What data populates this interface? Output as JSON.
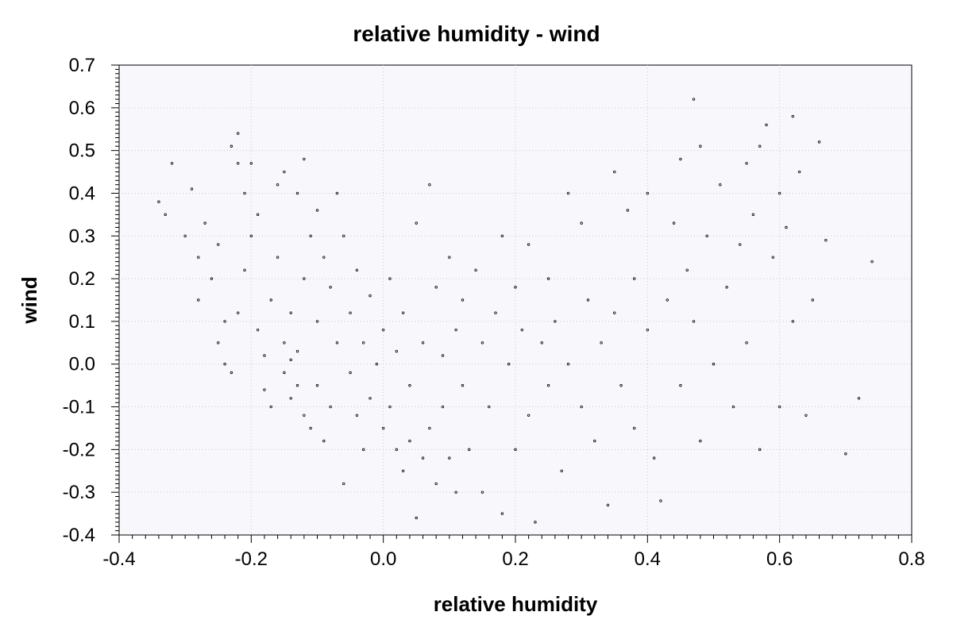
{
  "chart_data": {
    "type": "scatter",
    "title": "relative humidity - wind",
    "xlabel": "relative humidity",
    "ylabel": "wind",
    "xlim": [
      -0.4,
      0.8
    ],
    "ylim": [
      -0.4,
      0.7
    ],
    "xticks": [
      -0.4,
      -0.2,
      0.0,
      0.2,
      0.4,
      0.6,
      0.8
    ],
    "xtick_labels": [
      "-0.4",
      "-0.2",
      "0.0",
      "0.2",
      "0.4",
      "0.6",
      "0.8"
    ],
    "yticks": [
      -0.4,
      -0.3,
      -0.2,
      -0.1,
      0.0,
      0.1,
      0.2,
      0.3,
      0.4,
      0.5,
      0.6,
      0.7
    ],
    "ytick_labels": [
      "-0.4",
      "-0.3",
      "-0.2",
      "-0.1",
      "0.0",
      "0.1",
      "0.2",
      "0.3",
      "0.4",
      "0.5",
      "0.6",
      "0.7"
    ],
    "grid": true,
    "marker_color": "#000000",
    "plot_background": "#f7f7fc",
    "points": [
      [
        -0.34,
        0.38
      ],
      [
        -0.33,
        0.35
      ],
      [
        -0.32,
        0.47
      ],
      [
        -0.3,
        0.3
      ],
      [
        -0.29,
        0.41
      ],
      [
        -0.28,
        0.25
      ],
      [
        -0.28,
        0.15
      ],
      [
        -0.27,
        0.33
      ],
      [
        -0.26,
        0.2
      ],
      [
        -0.25,
        0.28
      ],
      [
        -0.24,
        0.1
      ],
      [
        -0.23,
        0.51
      ],
      [
        -0.22,
        0.54
      ],
      [
        -0.22,
        0.47
      ],
      [
        -0.21,
        0.4
      ],
      [
        -0.2,
        0.47
      ],
      [
        -0.25,
        0.05
      ],
      [
        -0.24,
        0.0
      ],
      [
        -0.23,
        -0.02
      ],
      [
        -0.22,
        0.12
      ],
      [
        -0.21,
        0.22
      ],
      [
        -0.2,
        0.3
      ],
      [
        -0.19,
        0.35
      ],
      [
        -0.19,
        0.08
      ],
      [
        -0.18,
        0.02
      ],
      [
        -0.18,
        -0.06
      ],
      [
        -0.17,
        -0.1
      ],
      [
        -0.17,
        0.15
      ],
      [
        -0.16,
        0.25
      ],
      [
        -0.16,
        0.42
      ],
      [
        -0.15,
        0.45
      ],
      [
        -0.15,
        0.05
      ],
      [
        -0.15,
        -0.02
      ],
      [
        -0.14,
        -0.08
      ],
      [
        -0.14,
        0.01
      ],
      [
        -0.14,
        0.12
      ],
      [
        -0.13,
        0.03
      ],
      [
        -0.13,
        -0.05
      ],
      [
        -0.13,
        0.4
      ],
      [
        -0.12,
        0.48
      ],
      [
        -0.12,
        0.2
      ],
      [
        -0.12,
        -0.12
      ],
      [
        -0.11,
        0.3
      ],
      [
        -0.11,
        -0.15
      ],
      [
        -0.1,
        0.36
      ],
      [
        -0.1,
        0.1
      ],
      [
        -0.1,
        -0.05
      ],
      [
        -0.09,
        0.25
      ],
      [
        -0.09,
        -0.18
      ],
      [
        -0.08,
        0.18
      ],
      [
        -0.08,
        -0.1
      ],
      [
        -0.07,
        0.4
      ],
      [
        -0.07,
        0.05
      ],
      [
        -0.06,
        -0.28
      ],
      [
        -0.06,
        0.3
      ],
      [
        -0.05,
        -0.02
      ],
      [
        -0.05,
        0.12
      ],
      [
        -0.04,
        -0.12
      ],
      [
        -0.04,
        0.22
      ],
      [
        -0.03,
        0.05
      ],
      [
        -0.03,
        -0.2
      ],
      [
        -0.02,
        -0.08
      ],
      [
        -0.02,
        0.16
      ],
      [
        -0.01,
        0.0
      ],
      [
        0.0,
        -0.15
      ],
      [
        0.0,
        0.08
      ],
      [
        0.01,
        -0.1
      ],
      [
        0.01,
        0.2
      ],
      [
        0.02,
        -0.2
      ],
      [
        0.02,
        0.03
      ],
      [
        0.03,
        -0.25
      ],
      [
        0.03,
        0.12
      ],
      [
        0.04,
        -0.18
      ],
      [
        0.04,
        -0.05
      ],
      [
        0.05,
        -0.36
      ],
      [
        0.05,
        0.33
      ],
      [
        0.06,
        -0.22
      ],
      [
        0.06,
        0.05
      ],
      [
        0.07,
        -0.15
      ],
      [
        0.07,
        0.42
      ],
      [
        0.08,
        -0.28
      ],
      [
        0.08,
        0.18
      ],
      [
        0.09,
        -0.1
      ],
      [
        0.09,
        0.02
      ],
      [
        0.1,
        -0.22
      ],
      [
        0.1,
        0.25
      ],
      [
        0.11,
        -0.3
      ],
      [
        0.11,
        0.08
      ],
      [
        0.12,
        -0.05
      ],
      [
        0.12,
        0.15
      ],
      [
        0.13,
        -0.2
      ],
      [
        0.14,
        0.22
      ],
      [
        0.15,
        -0.3
      ],
      [
        0.15,
        0.05
      ],
      [
        0.16,
        -0.1
      ],
      [
        0.17,
        0.12
      ],
      [
        0.18,
        -0.35
      ],
      [
        0.18,
        0.3
      ],
      [
        0.19,
        0.0
      ],
      [
        0.2,
        -0.2
      ],
      [
        0.2,
        0.18
      ],
      [
        0.21,
        0.08
      ],
      [
        0.22,
        -0.12
      ],
      [
        0.22,
        0.28
      ],
      [
        0.23,
        -0.37
      ],
      [
        0.24,
        0.05
      ],
      [
        0.25,
        -0.05
      ],
      [
        0.25,
        0.2
      ],
      [
        0.26,
        0.1
      ],
      [
        0.27,
        -0.25
      ],
      [
        0.28,
        0.4
      ],
      [
        0.28,
        0.0
      ],
      [
        0.3,
        -0.1
      ],
      [
        0.3,
        0.33
      ],
      [
        0.31,
        0.15
      ],
      [
        0.32,
        -0.18
      ],
      [
        0.33,
        0.05
      ],
      [
        0.34,
        -0.33
      ],
      [
        0.35,
        0.45
      ],
      [
        0.35,
        0.12
      ],
      [
        0.36,
        -0.05
      ],
      [
        0.37,
        0.36
      ],
      [
        0.38,
        0.2
      ],
      [
        0.38,
        -0.15
      ],
      [
        0.4,
        0.08
      ],
      [
        0.4,
        0.4
      ],
      [
        0.41,
        -0.22
      ],
      [
        0.42,
        -0.32
      ],
      [
        0.43,
        0.15
      ],
      [
        0.44,
        0.33
      ],
      [
        0.45,
        0.48
      ],
      [
        0.45,
        -0.05
      ],
      [
        0.46,
        0.22
      ],
      [
        0.47,
        0.62
      ],
      [
        0.47,
        0.1
      ],
      [
        0.48,
        -0.18
      ],
      [
        0.48,
        0.51
      ],
      [
        0.49,
        0.3
      ],
      [
        0.5,
        0.0
      ],
      [
        0.51,
        0.42
      ],
      [
        0.52,
        0.18
      ],
      [
        0.53,
        -0.1
      ],
      [
        0.54,
        0.28
      ],
      [
        0.55,
        0.47
      ],
      [
        0.55,
        0.05
      ],
      [
        0.56,
        0.35
      ],
      [
        0.57,
        -0.2
      ],
      [
        0.57,
        0.51
      ],
      [
        0.58,
        0.56
      ],
      [
        0.59,
        0.25
      ],
      [
        0.6,
        0.4
      ],
      [
        0.6,
        -0.1
      ],
      [
        0.61,
        0.32
      ],
      [
        0.62,
        0.58
      ],
      [
        0.62,
        0.1
      ],
      [
        0.63,
        0.45
      ],
      [
        0.64,
        -0.12
      ],
      [
        0.65,
        0.15
      ],
      [
        0.66,
        0.52
      ],
      [
        0.67,
        0.29
      ],
      [
        0.7,
        -0.21
      ],
      [
        0.72,
        -0.08
      ],
      [
        0.74,
        0.24
      ]
    ]
  }
}
